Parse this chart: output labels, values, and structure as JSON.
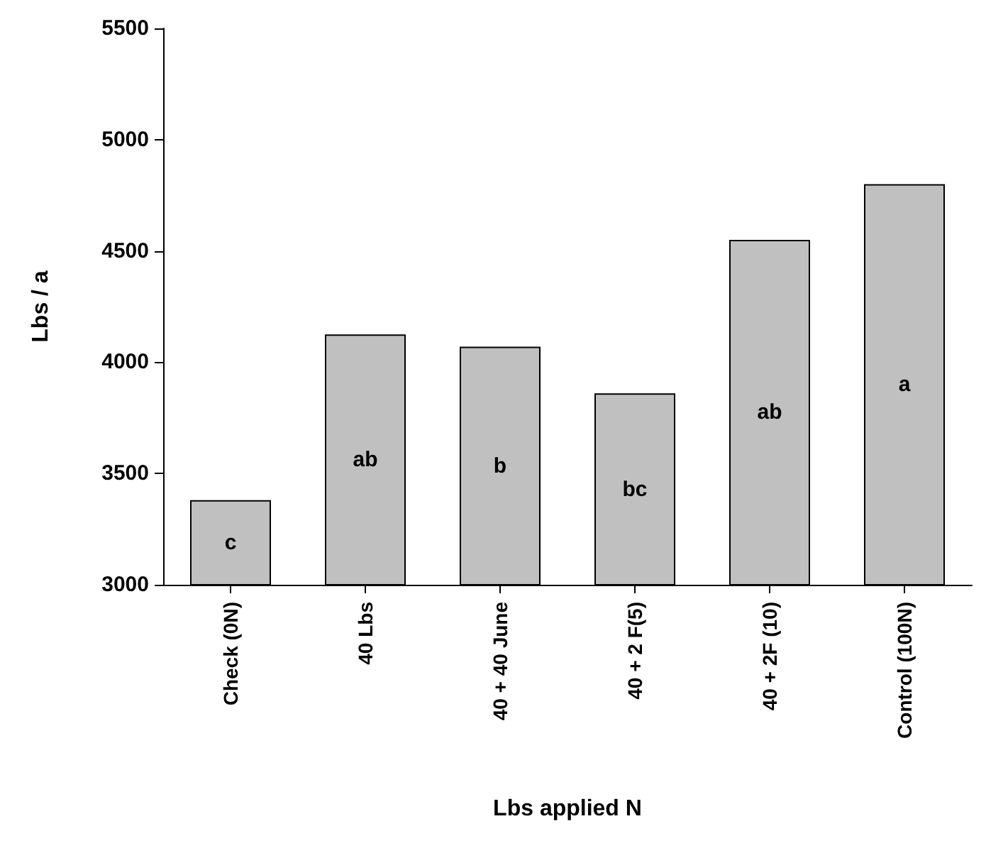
{
  "chart_data": {
    "type": "bar",
    "xlabel": "Lbs applied N",
    "ylabel": "Lbs / a",
    "categories": [
      "Check (0N)",
      "40 Lbs",
      "40 + 40 June",
      "40 + 2 F(5)",
      "40 + 2F (10)",
      "Control (100N)"
    ],
    "values": [
      3380,
      4125,
      4070,
      3860,
      4550,
      4800
    ],
    "color": "#c0c0c0",
    "ylim": [
      3000,
      5500
    ],
    "yticks": [
      3000,
      3500,
      4000,
      4500,
      5000,
      5500
    ],
    "grid": false,
    "annotations": [
      "c",
      "ab",
      "b",
      "bc",
      "ab",
      "a"
    ]
  }
}
